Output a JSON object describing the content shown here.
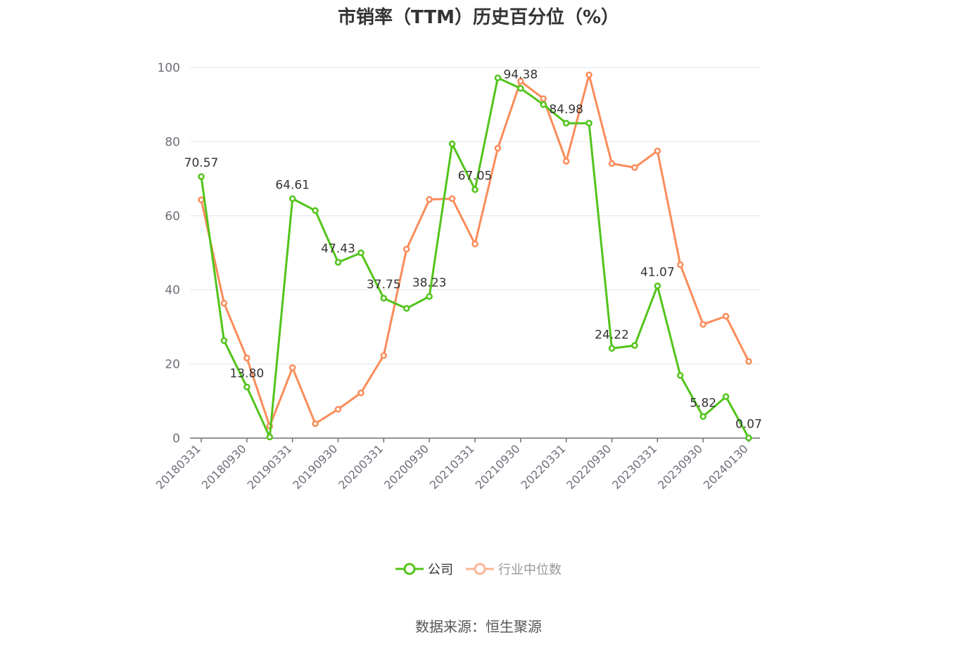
{
  "title": "市销率（TTM）历史百分位（%）",
  "source": "数据来源：恒生聚源",
  "legend": [
    {
      "name": "公司",
      "color": "#52c41a",
      "inactive": false
    },
    {
      "name": "行业中位数",
      "color": "#fa8c5a",
      "inactive": true
    }
  ],
  "chart_data": {
    "type": "line",
    "title": "市销率（TTM）历史百分位（%）",
    "xlabel": "",
    "ylabel": "",
    "ylim": [
      0,
      100
    ],
    "yticks": [
      0,
      20,
      40,
      60,
      80,
      100
    ],
    "grid": true,
    "legend_position": "bottom-center",
    "x": [
      "20180331",
      "20180630",
      "20180930",
      "20181231",
      "20190331",
      "20190630",
      "20190930",
      "20191231",
      "20200331",
      "20200630",
      "20200930",
      "20201231",
      "20210331",
      "20210630",
      "20210930",
      "20211231",
      "20220331",
      "20220630",
      "20220930",
      "20221231",
      "20230331",
      "20230630",
      "20230930",
      "20231231",
      "20240130"
    ],
    "xtick_labels": [
      "20180331",
      "20180930",
      "20190331",
      "20190930",
      "20200331",
      "20200930",
      "20210331",
      "20210930",
      "20220331",
      "20220930",
      "20230331",
      "20230930",
      "20240130"
    ],
    "series": [
      {
        "name": "公司",
        "color": "#52c41a",
        "values": [
          70.57,
          26.3,
          13.8,
          0.3,
          64.61,
          61.4,
          47.43,
          50.0,
          37.75,
          35.0,
          38.23,
          79.4,
          67.05,
          97.2,
          94.38,
          90.0,
          84.98,
          84.98,
          24.22,
          25.0,
          41.07,
          16.9,
          5.82,
          11.2,
          0.07
        ],
        "labels": [
          "70.57",
          "",
          "13.80",
          "",
          "64.61",
          "",
          "47.43",
          "",
          "37.75",
          "",
          "38.23",
          "",
          "67.05",
          "",
          "94.38",
          "",
          "84.98",
          "",
          "24.22",
          "",
          "41.07",
          "",
          "5.82",
          "",
          "0.07"
        ]
      },
      {
        "name": "行业中位数",
        "color": "#fa8c5a",
        "values": [
          64.3,
          36.4,
          21.6,
          3.2,
          19.0,
          3.9,
          7.8,
          12.2,
          22.3,
          51.0,
          64.4,
          64.6,
          52.4,
          78.2,
          96.3,
          91.6,
          74.7,
          98.0,
          74.1,
          73.0,
          77.5,
          46.8,
          30.7,
          32.9,
          20.7
        ]
      }
    ]
  }
}
